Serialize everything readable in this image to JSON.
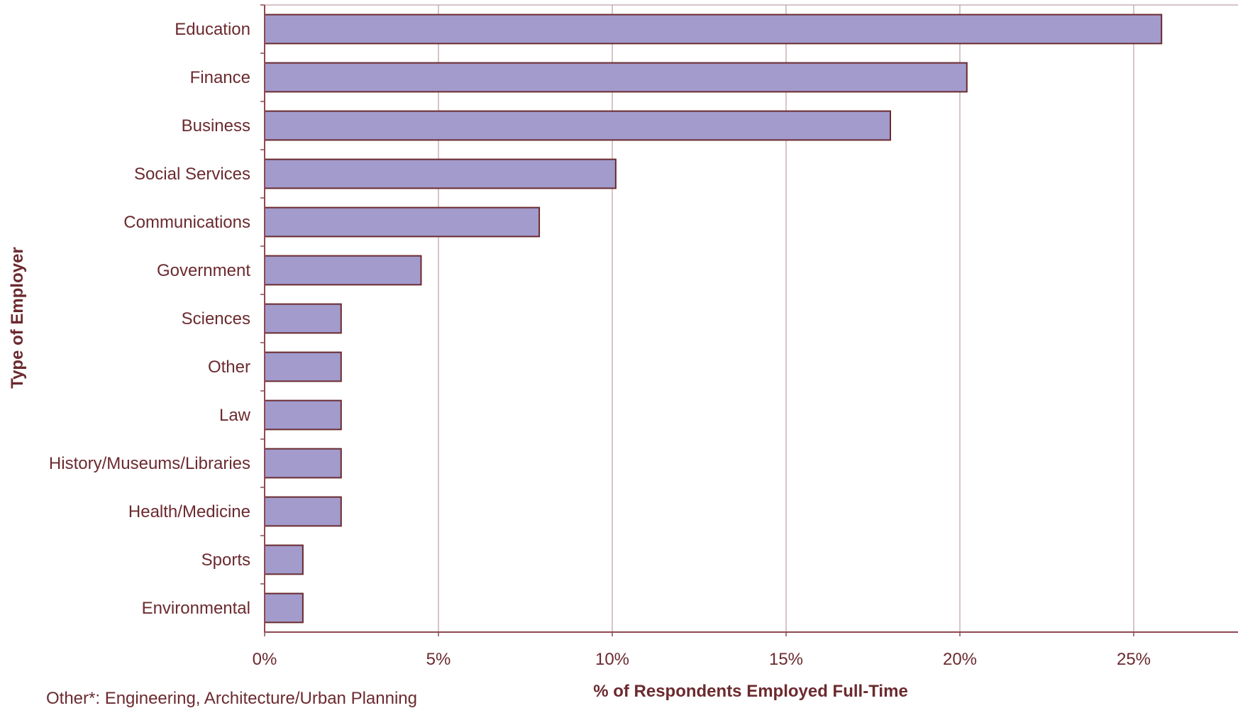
{
  "chart_data": {
    "type": "bar",
    "orientation": "horizontal",
    "title": "",
    "xlabel": "% of Respondents Employed Full-Time",
    "ylabel": "Type of Employer",
    "categories": [
      "Education",
      "Finance",
      "Business",
      "Social Services",
      "Communications",
      "Government",
      "Sciences",
      "Other",
      "Law",
      "History/Museums/Libraries",
      "Health/Medicine",
      "Sports",
      "Environmental"
    ],
    "values": [
      25.8,
      20.2,
      18.0,
      10.1,
      7.9,
      4.5,
      2.2,
      2.2,
      2.2,
      2.2,
      2.2,
      1.1,
      1.1
    ],
    "xlim": [
      0,
      28
    ],
    "xticks": [
      "0%",
      "5%",
      "10%",
      "15%",
      "20%",
      "25%"
    ],
    "xtick_values": [
      0,
      5,
      10,
      15,
      20,
      25
    ],
    "grid": "vertical",
    "legend": "none",
    "footnote": "Other*:  Engineering, Architecture/Urban Planning"
  },
  "colors": {
    "bar_fill": "#a29bcc",
    "bar_stroke": "#6b2a2f",
    "axis": "#8c4a52",
    "gridline": "#b08a8f",
    "text": "#6b2a2f"
  }
}
